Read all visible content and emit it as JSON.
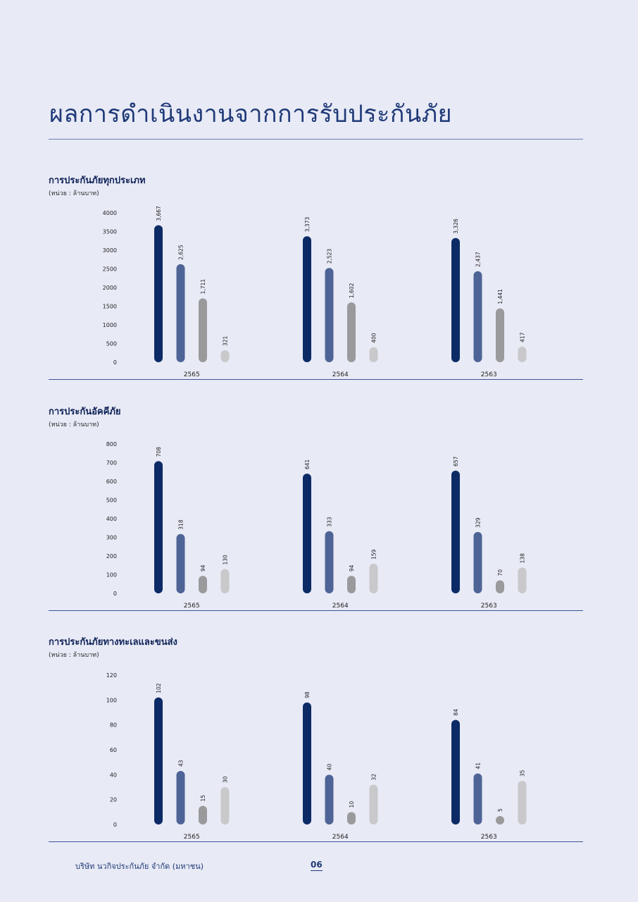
{
  "page": {
    "title": "ผลการดำเนินงานจากการรับประกันภัย",
    "footer_company": "บริษัท นวกิจประกันภัย จำกัด (มหาชน)",
    "page_number": "06"
  },
  "colors": {
    "background": "#e8eaf5",
    "title": "#1f3a78",
    "series": [
      "#0c2b66",
      "#4f6496",
      "#9a9a9c",
      "#c9c9cb"
    ]
  },
  "sections": [
    {
      "title": "การประกันภัยทุกประเภท",
      "unit": "(หน่วย : ล้านบาท)"
    },
    {
      "title": "การประกันอัคคีภัย",
      "unit": "(หน่วย : ล้านบาท)"
    },
    {
      "title": "การประกันภัยทางทะเลและขนส่ง",
      "unit": "(หน่วย : ล้านบาท)"
    }
  ],
  "chart_data": [
    {
      "type": "bar",
      "title": "การประกันภัยทุกประเภท",
      "categories": [
        "2565",
        "2564",
        "2563"
      ],
      "series": [
        {
          "values": [
            3667,
            3373,
            3326
          ],
          "labels": [
            "3,667",
            "3,373",
            "3,326"
          ]
        },
        {
          "values": [
            2625,
            2523,
            2437
          ],
          "labels": [
            "2,625",
            "2,523",
            "2,437"
          ]
        },
        {
          "values": [
            1711,
            1602,
            1441
          ],
          "labels": [
            "1,711",
            "1,602",
            "1,441"
          ]
        },
        {
          "values": [
            321,
            400,
            417
          ],
          "labels": [
            "321",
            "400",
            "417"
          ]
        }
      ],
      "yticks": [
        0,
        500,
        1000,
        1500,
        2000,
        2500,
        3000,
        3500,
        4000
      ],
      "ylim": [
        0,
        4000
      ],
      "grid": false
    },
    {
      "type": "bar",
      "title": "การประกันอัคคีภัย",
      "categories": [
        "2565",
        "2564",
        "2563"
      ],
      "series": [
        {
          "values": [
            708,
            641,
            657
          ],
          "labels": [
            "708",
            "641",
            "657"
          ]
        },
        {
          "values": [
            318,
            333,
            329
          ],
          "labels": [
            "318",
            "333",
            "329"
          ]
        },
        {
          "values": [
            94,
            94,
            70
          ],
          "labels": [
            "94",
            "94",
            "70"
          ]
        },
        {
          "values": [
            130,
            159,
            138
          ],
          "labels": [
            "130",
            "159",
            "138"
          ]
        }
      ],
      "yticks": [
        0,
        100,
        200,
        300,
        400,
        500,
        600,
        700,
        800
      ],
      "ylim": [
        0,
        800
      ],
      "grid": false
    },
    {
      "type": "bar",
      "title": "การประกันภัยทางทะเลและขนส่ง",
      "categories": [
        "2565",
        "2564",
        "2563"
      ],
      "series": [
        {
          "values": [
            102,
            98,
            84
          ],
          "labels": [
            "102",
            "98",
            "84"
          ]
        },
        {
          "values": [
            43,
            40,
            41
          ],
          "labels": [
            "43",
            "40",
            "41"
          ]
        },
        {
          "values": [
            15,
            10,
            5
          ],
          "labels": [
            "15",
            "10",
            "5"
          ]
        },
        {
          "values": [
            30,
            32,
            35
          ],
          "labels": [
            "30",
            "32",
            "35"
          ]
        }
      ],
      "yticks": [
        0,
        20,
        40,
        60,
        80,
        100,
        120
      ],
      "ylim": [
        0,
        120
      ],
      "grid": false
    }
  ]
}
